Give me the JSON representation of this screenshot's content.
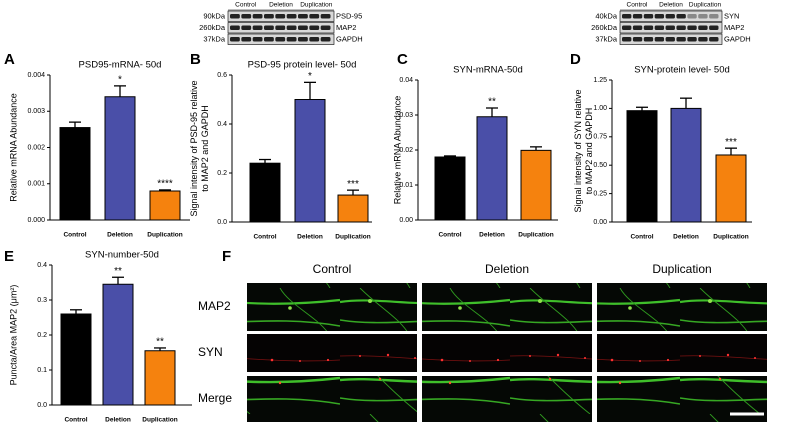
{
  "chart_data": [
    {
      "type": "bar",
      "panel": "A",
      "title": "PSD95-mRNA- 50d",
      "ylabel": [
        "Relative mRNA Abundance"
      ],
      "categories": [
        "Control",
        "Deletion",
        "Duplication"
      ],
      "values": [
        0.00255,
        0.0034,
        0.0008
      ],
      "errors": [
        0.00015,
        0.0003,
        3e-05
      ],
      "colors": [
        "#000000",
        "#4a4fa8",
        "#f5820e"
      ],
      "significance": [
        null,
        "*",
        "****"
      ],
      "ylim": [
        0,
        0.004
      ],
      "yticks": [
        {
          "value": 0,
          "label": "0.000"
        },
        {
          "value": 0.001,
          "label": "0.001"
        },
        {
          "value": 0.002,
          "label": "0.002"
        },
        {
          "value": 0.003,
          "label": "0.003"
        },
        {
          "value": 0.004,
          "label": "0.004"
        }
      ]
    },
    {
      "type": "bar",
      "panel": "B",
      "title": "PSD-95 protein level- 50d",
      "ylabel": [
        "Signal intensity of PSD-95 relative",
        "to MAP2 and GAPDH"
      ],
      "categories": [
        "Control",
        "Deletion",
        "Duplication"
      ],
      "values": [
        0.24,
        0.5,
        0.11
      ],
      "errors": [
        0.015,
        0.07,
        0.02
      ],
      "colors": [
        "#000000",
        "#4a4fa8",
        "#f5820e"
      ],
      "significance": [
        null,
        "*",
        "***"
      ],
      "ylim": [
        0,
        0.6
      ],
      "yticks": [
        {
          "value": 0,
          "label": "0.0"
        },
        0.2,
        0.4,
        0.6
      ]
    },
    {
      "type": "bar",
      "panel": "C",
      "title": "SYN-mRNA-50d",
      "ylabel": [
        "Relative mRNA Abundance"
      ],
      "categories": [
        "Control",
        "Deletion",
        "Duplication"
      ],
      "values": [
        0.018,
        0.0295,
        0.0199
      ],
      "errors": [
        0.0003,
        0.0025,
        0.001
      ],
      "colors": [
        "#000000",
        "#4a4fa8",
        "#f5820e"
      ],
      "significance": [
        null,
        "**",
        null
      ],
      "ylim": [
        0,
        0.04
      ],
      "yticks": [
        {
          "value": 0,
          "label": "0.00"
        },
        {
          "value": 0.01,
          "label": "0.01"
        },
        {
          "value": 0.02,
          "label": "0.02"
        },
        {
          "value": 0.03,
          "label": "0.03"
        },
        {
          "value": 0.04,
          "label": "0.04"
        }
      ]
    },
    {
      "type": "bar",
      "panel": "D",
      "title": "SYN-protein level- 50d",
      "ylabel": [
        "Signal intensity of SYN relative",
        "to MAP2 and GAPDH"
      ],
      "categories": [
        "Control",
        "Deletion",
        "Duplication"
      ],
      "values": [
        0.98,
        1.0,
        0.59
      ],
      "errors": [
        0.03,
        0.09,
        0.06
      ],
      "colors": [
        "#000000",
        "#4a4fa8",
        "#f5820e"
      ],
      "significance": [
        null,
        null,
        "***"
      ],
      "ylim": [
        0,
        1.25
      ],
      "yticks": [
        {
          "value": 0,
          "label": "0.00"
        },
        0.25,
        {
          "value": 0.5,
          "label": "0.50"
        },
        0.75,
        {
          "value": 1,
          "label": "1.00"
        },
        1.25
      ]
    },
    {
      "type": "bar",
      "panel": "E",
      "title": "SYN-number-50d",
      "ylabel": [
        "Puncta/Area MAP2 (μm²)"
      ],
      "categories": [
        "Control",
        "Deletion",
        "Duplication"
      ],
      "values": [
        0.26,
        0.345,
        0.155
      ],
      "errors": [
        0.012,
        0.02,
        0.008
      ],
      "colors": [
        "#000000",
        "#4a4fa8",
        "#f5820e"
      ],
      "significance": [
        null,
        "**",
        "**"
      ],
      "ylim": [
        0,
        0.4
      ],
      "yticks": [
        {
          "value": 0,
          "label": "0.0"
        },
        0.1,
        0.2,
        0.3,
        0.4
      ]
    }
  ],
  "blots": [
    {
      "groups": [
        "Control",
        "Deletion",
        "Duplication"
      ],
      "sizes": [
        "90kDa",
        "260kDa",
        "37kDa"
      ],
      "proteins": [
        "PSD-95",
        "MAP2",
        "GAPDH"
      ]
    },
    {
      "groups": [
        "Control",
        "Deletion",
        "Duplication"
      ],
      "sizes": [
        "40kDa",
        "260kDa",
        "37kDa"
      ],
      "proteins": [
        "SYN",
        "MAP2",
        "GAPDH"
      ]
    }
  ],
  "micrographs": {
    "panel": "F",
    "columns": [
      "Control",
      "Deletion",
      "Duplication"
    ],
    "rows": [
      "MAP2",
      "SYN",
      "Merge"
    ]
  }
}
